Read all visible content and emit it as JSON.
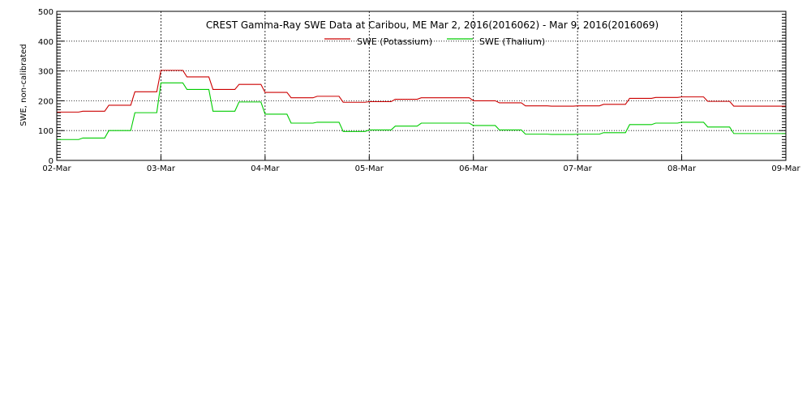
{
  "chart_data": {
    "type": "line",
    "title": "CREST Gamma-Ray SWE Data at Caribou, ME   Mar  2, 2016(2016062) - Mar  9, 2016(2016069)",
    "xlabel": "",
    "ylabel": "SWE, non-calibrated",
    "x_unit": "days after 2016-03-02 00:00",
    "xlim": [
      0,
      7
    ],
    "ylim": [
      0,
      500
    ],
    "x_tick_labels": [
      "02-Mar",
      "03-Mar",
      "04-Mar",
      "05-Mar",
      "06-Mar",
      "07-Mar",
      "08-Mar",
      "09-Mar"
    ],
    "y_ticks": [
      0,
      100,
      200,
      300,
      400,
      500
    ],
    "grid": true,
    "legend_position": "top-center",
    "series": [
      {
        "name": "SWE (Potassium)",
        "color": "#cc0000",
        "x": [
          0,
          0.25,
          0.5,
          0.75,
          1.0,
          1.25,
          1.5,
          1.75,
          2.0,
          2.25,
          2.5,
          2.75,
          3.0,
          3.25,
          3.5,
          3.75,
          4.0,
          4.25,
          4.5,
          4.75,
          5.0,
          5.25,
          5.5,
          5.75,
          6.0,
          6.25,
          6.5,
          6.75,
          7.0
        ],
        "y": [
          162,
          165,
          185,
          230,
          302,
          280,
          238,
          255,
          228,
          210,
          215,
          195,
          197,
          205,
          210,
          210,
          200,
          193,
          183,
          182,
          183,
          188,
          208,
          211,
          213,
          198,
          182,
          182,
          182
        ]
      },
      {
        "name": "SWE (Thalium)",
        "color": "#00cc00",
        "x": [
          0,
          0.25,
          0.5,
          0.75,
          1.0,
          1.25,
          1.5,
          1.75,
          2.0,
          2.25,
          2.5,
          2.75,
          3.0,
          3.25,
          3.5,
          3.75,
          4.0,
          4.25,
          4.5,
          4.75,
          5.0,
          5.25,
          5.5,
          5.75,
          6.0,
          6.25,
          6.5,
          6.75,
          7.0
        ],
        "y": [
          70,
          75,
          100,
          160,
          260,
          238,
          165,
          196,
          155,
          125,
          128,
          97,
          102,
          115,
          125,
          125,
          117,
          102,
          88,
          87,
          88,
          93,
          120,
          125,
          128,
          112,
          90,
          90,
          90
        ]
      }
    ]
  }
}
